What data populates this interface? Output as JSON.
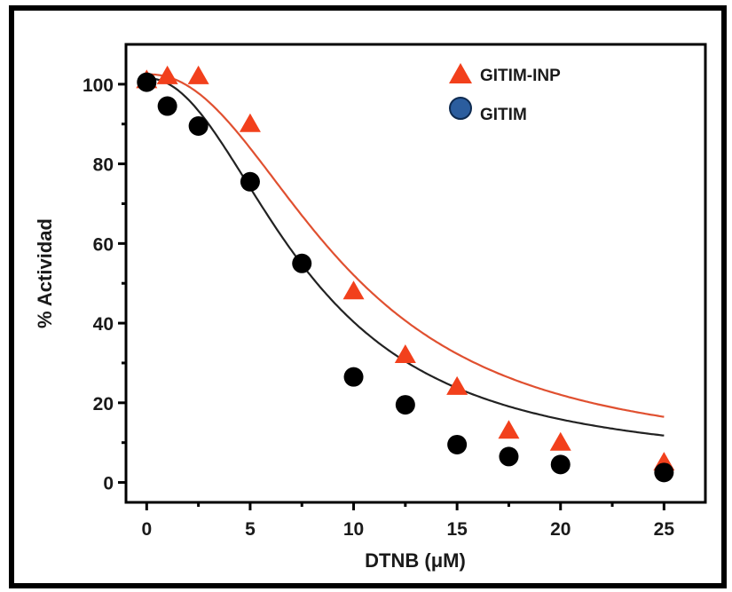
{
  "chart_data": {
    "type": "scatter",
    "xlabel": "DTNB (μM)",
    "ylabel": "% Actividad",
    "xlim": [
      -1,
      27
    ],
    "ylim": [
      -5,
      110
    ],
    "xticks": [
      0,
      5,
      10,
      15,
      20,
      25
    ],
    "yticks": [
      0,
      20,
      40,
      60,
      80,
      100
    ],
    "xtick_labels": [
      "0",
      "5",
      "10",
      "15",
      "20",
      "25"
    ],
    "ytick_labels": [
      "0",
      "20",
      "40",
      "60",
      "80",
      "100"
    ],
    "grid": false,
    "legend_position": "top-right",
    "series": [
      {
        "name": "GITIM-INP",
        "marker": "triangle",
        "color": "#f2401c",
        "fit_color": "#e05030",
        "x": [
          0,
          1,
          2.5,
          5,
          10,
          12.5,
          15,
          17.5,
          20,
          25
        ],
        "y": [
          101,
          102,
          102,
          90,
          48,
          32,
          24,
          13,
          10,
          5
        ],
        "fit": {
          "model": "sigmoid",
          "top": 102.5,
          "bottom": 6,
          "x50": 9.6,
          "slope": 2.2
        }
      },
      {
        "name": "GITIM",
        "marker": "circle",
        "color": "#000000",
        "legend_color": "#2b5d9e",
        "fit_color": "#222222",
        "x": [
          0,
          1,
          2.5,
          5,
          7.5,
          10,
          12.5,
          15,
          17.5,
          20,
          25
        ],
        "y": [
          100.5,
          94.5,
          89.5,
          75.5,
          55,
          26.5,
          19.5,
          9.5,
          6.5,
          4.5,
          2.5
        ],
        "fit": {
          "model": "sigmoid",
          "top": 101.5,
          "bottom": 4,
          "x50": 7.8,
          "slope": 2.1
        }
      }
    ]
  }
}
